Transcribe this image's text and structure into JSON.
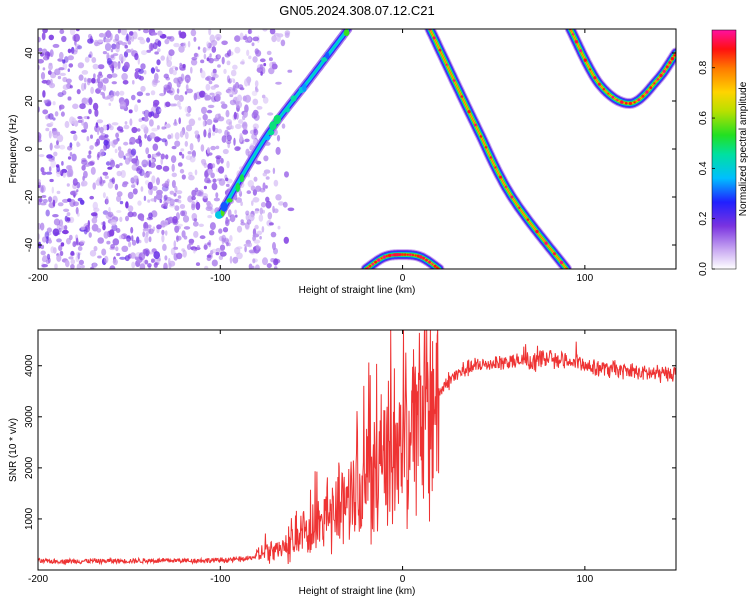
{
  "title": "GN05.2024.308.07.12.C21",
  "chart_data": [
    {
      "type": "heatmap",
      "title": "GN05.2024.308.07.12.C21",
      "xlabel": "Height of straight line (km)",
      "ylabel": "Frequency (Hz)",
      "xlim": [
        -200,
        150
      ],
      "ylim": [
        -50,
        50
      ],
      "x_ticks": [
        "-200",
        "-100",
        "0",
        "100"
      ],
      "y_ticks": [
        "-40",
        "-20",
        "0",
        "20",
        "40"
      ],
      "colorbar": {
        "label": "Normalized spectral amplitude",
        "range": [
          0,
          0.95
        ],
        "ticks": [
          "0.0",
          "0.2",
          "0.4",
          "0.6",
          "0.8"
        ]
      },
      "features": [
        {
          "name": "noise-region",
          "x_range": [
            -200,
            -80
          ],
          "amplitude": 0.15
        },
        {
          "name": "rising-band",
          "points": [
            [
              -100,
              -27
            ],
            [
              -75,
              5
            ],
            [
              -50,
              30
            ],
            [
              -30,
              50
            ]
          ],
          "amplitude": 0.45
        },
        {
          "name": "descending-parabola",
          "points": [
            [
              15,
              50
            ],
            [
              40,
              10
            ],
            [
              60,
              -20
            ],
            [
              90,
              -50
            ]
          ],
          "amplitude": 0.85
        },
        {
          "name": "bottom-arc",
          "points": [
            [
              -20,
              -50
            ],
            [
              -10,
              -45
            ],
            [
              0,
              -44
            ],
            [
              10,
              -45
            ],
            [
              20,
              -50
            ]
          ],
          "amplitude": 0.85
        },
        {
          "name": "right-parabola",
          "points": [
            [
              92,
              50
            ],
            [
              108,
              27
            ],
            [
              125,
              19
            ],
            [
              140,
              29
            ],
            [
              150,
              40
            ]
          ],
          "amplitude": 0.85
        }
      ]
    },
    {
      "type": "line",
      "xlabel": "Height of straight line (km)",
      "ylabel": "SNR (10 * v/v)",
      "xlim": [
        -200,
        150
      ],
      "ylim": [
        0,
        4700
      ],
      "x_ticks": [
        "-200",
        "-100",
        "0",
        "100"
      ],
      "y_ticks": [
        "1000",
        "2000",
        "3000",
        "4000"
      ],
      "series": [
        {
          "color": "#ee3333",
          "x": [
            -200,
            -150,
            -100,
            -85,
            -75,
            -65,
            -55,
            -45,
            -35,
            -25,
            -15,
            -5,
            5,
            15,
            25,
            35,
            50,
            70,
            80,
            90,
            100,
            110,
            120,
            135,
            150
          ],
          "y": [
            170,
            180,
            190,
            220,
            320,
            450,
            650,
            950,
            1250,
            1650,
            2050,
            2350,
            2750,
            3200,
            3700,
            3950,
            4050,
            4100,
            4150,
            4100,
            4000,
            3950,
            3900,
            3850,
            3850
          ]
        }
      ]
    }
  ]
}
